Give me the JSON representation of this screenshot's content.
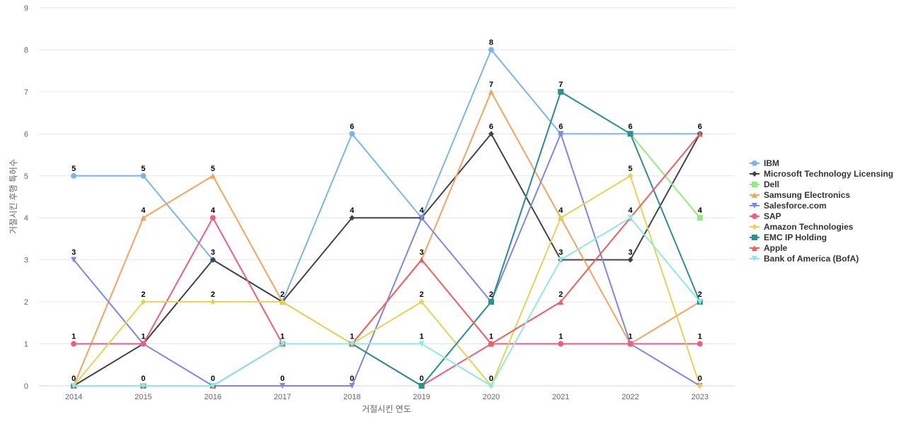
{
  "chart_data": {
    "type": "line",
    "title": "",
    "xlabel": "거절시킨 연도",
    "ylabel": "거절시킨 후행 특허수",
    "ylim": [
      0,
      9
    ],
    "yticks": [
      0,
      1,
      2,
      3,
      4,
      5,
      6,
      7,
      8,
      9
    ],
    "categories": [
      "2014",
      "2015",
      "2016",
      "2017",
      "2018",
      "2019",
      "2020",
      "2021",
      "2022",
      "2023"
    ],
    "legend_position": "right",
    "series": [
      {
        "name": "IBM",
        "color": "#7cb5ec",
        "marker": "circle",
        "values": [
          5,
          5,
          3,
          2,
          6,
          4,
          8,
          6,
          6,
          6
        ]
      },
      {
        "name": "Microsoft Technology Licensing",
        "color": "#434348",
        "marker": "diamond",
        "values": [
          0,
          1,
          3,
          2,
          4,
          4,
          6,
          3,
          3,
          6
        ]
      },
      {
        "name": "Dell",
        "color": "#90ed7d",
        "marker": "square",
        "values": [
          0,
          0,
          0,
          1,
          1,
          0,
          2,
          7,
          6,
          4
        ]
      },
      {
        "name": "Samsung Electronics",
        "color": "#f7a35c",
        "marker": "triangle",
        "values": [
          0,
          4,
          5,
          2,
          1,
          3,
          7,
          4,
          1,
          2
        ]
      },
      {
        "name": "Salesforce.com",
        "color": "#8085e9",
        "marker": "triangle-down",
        "values": [
          3,
          1,
          0,
          0,
          0,
          4,
          2,
          6,
          1,
          0
        ]
      },
      {
        "name": "SAP",
        "color": "#f15c80",
        "marker": "circle",
        "values": [
          1,
          1,
          4,
          1,
          1,
          0,
          1,
          1,
          1,
          1
        ]
      },
      {
        "name": "Amazon Technologies",
        "color": "#e4d354",
        "marker": "diamond",
        "values": [
          0,
          2,
          2,
          2,
          1,
          2,
          0,
          4,
          5,
          0
        ]
      },
      {
        "name": "EMC IP Holding",
        "color": "#2b908f",
        "marker": "square",
        "values": [
          0,
          0,
          0,
          1,
          1,
          0,
          2,
          7,
          6,
          2
        ]
      },
      {
        "name": "Apple",
        "color": "#f45b5b",
        "marker": "triangle",
        "values": [
          0,
          0,
          0,
          1,
          1,
          3,
          1,
          2,
          4,
          6
        ]
      },
      {
        "name": "Bank of America (BofA)",
        "color": "#91e8e1",
        "marker": "triangle-down",
        "values": [
          0,
          0,
          0,
          1,
          1,
          1,
          0,
          3,
          4,
          2
        ]
      }
    ],
    "data_labels": {
      "2014": [
        5,
        3,
        1,
        0
      ],
      "2015": [
        5,
        4,
        2,
        1,
        0
      ],
      "2016": [
        5,
        4,
        3,
        2,
        0
      ],
      "2017": [
        2,
        1,
        0
      ],
      "2018": [
        6,
        4,
        1,
        0
      ],
      "2019": [
        4,
        3,
        2,
        1,
        0
      ],
      "2020": [
        8,
        7,
        6,
        2,
        1,
        0
      ],
      "2021": [
        7,
        6,
        4,
        3,
        2,
        1
      ],
      "2022": [
        6,
        5,
        4,
        3,
        1
      ],
      "2023": [
        6,
        4,
        2,
        1,
        0
      ]
    }
  }
}
